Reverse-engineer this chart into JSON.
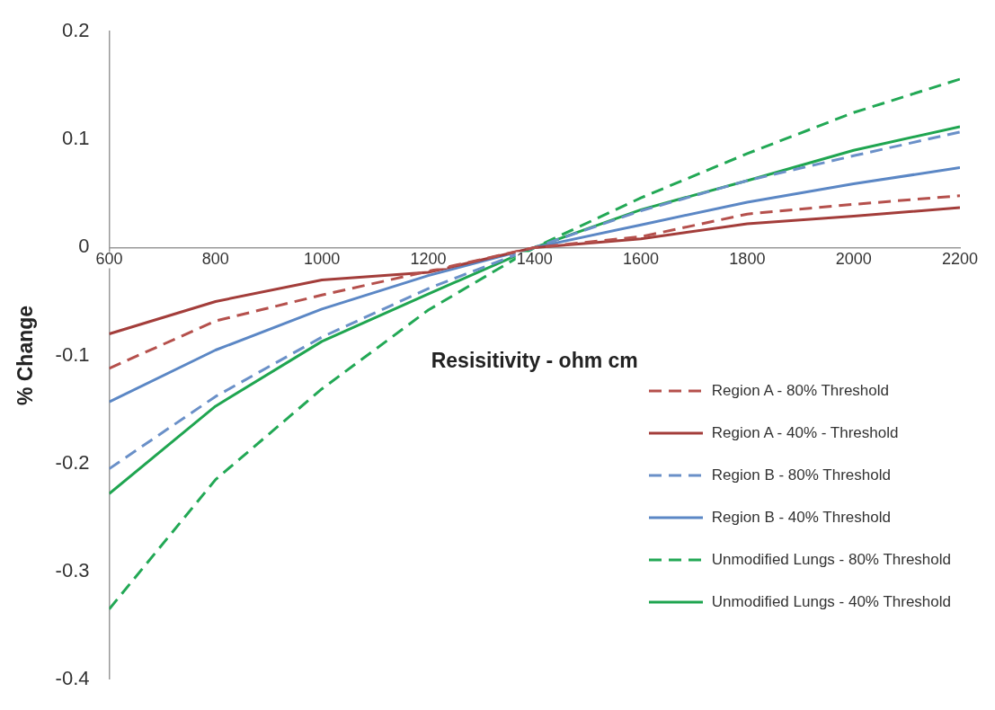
{
  "chart_data": {
    "type": "line",
    "xlabel": "Resisitivity - ohm cm",
    "ylabel": "% Change",
    "x": [
      600,
      800,
      1000,
      1200,
      1400,
      1600,
      1800,
      2000,
      2200
    ],
    "xlim": [
      600,
      2200
    ],
    "xticks": [
      600,
      800,
      1000,
      1200,
      1400,
      1600,
      1800,
      2000,
      2200
    ],
    "ylim": [
      -0.4,
      0.2
    ],
    "yticks": [
      -0.4,
      -0.3,
      -0.2,
      -0.1,
      0,
      0.1,
      0.2
    ],
    "grid": false,
    "legend": "bottom right",
    "marker": "none",
    "series": [
      {
        "name": "Region A - 80% Threshold",
        "color": "#b5504c",
        "line_style": "dashed",
        "values": [
          -0.112,
          -0.068,
          -0.044,
          -0.022,
          0,
          0.01,
          0.031,
          0.04,
          0.048
        ]
      },
      {
        "name": "Region A - 40% - Threshold",
        "color": "#a33d3a",
        "line_style": "solid",
        "values": [
          -0.08,
          -0.05,
          -0.03,
          -0.023,
          0,
          0.008,
          0.022,
          0.029,
          0.037
        ]
      },
      {
        "name": "Region B - 80% Threshold",
        "color": "#6a90c8",
        "line_style": "dashed",
        "values": [
          -0.205,
          -0.138,
          -0.083,
          -0.038,
          0,
          0.034,
          0.062,
          0.085,
          0.107
        ]
      },
      {
        "name": "Region B - 40% Threshold",
        "color": "#5b87c5",
        "line_style": "solid",
        "values": [
          -0.143,
          -0.095,
          -0.057,
          -0.026,
          0,
          0.021,
          0.042,
          0.059,
          0.074
        ]
      },
      {
        "name": "Unmodified Lungs - 80% Threshold",
        "color": "#22a855",
        "line_style": "dashed",
        "values": [
          -0.335,
          -0.215,
          -0.131,
          -0.058,
          0,
          0.046,
          0.087,
          0.125,
          0.156
        ]
      },
      {
        "name": "Unmodified Lungs - 40% Threshold",
        "color": "#1fa550",
        "line_style": "solid",
        "values": [
          -0.228,
          -0.147,
          -0.087,
          -0.043,
          0,
          0.035,
          0.062,
          0.09,
          0.112
        ]
      }
    ]
  }
}
